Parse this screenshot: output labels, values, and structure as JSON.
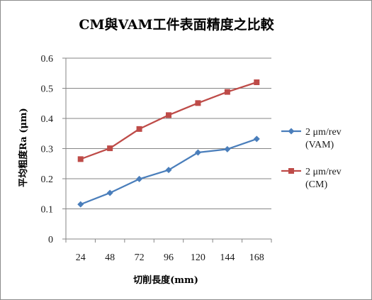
{
  "chart_data": {
    "type": "line",
    "title": "CM與VAM工件表面精度之比較",
    "xlabel": "切削長度(mm)",
    "ylabel": "平均粗度Ra (μm)",
    "categories": [
      "24",
      "48",
      "72",
      "96",
      "120",
      "144",
      "168"
    ],
    "ylim": [
      0,
      0.6
    ],
    "yticks": [
      "0",
      "0.1",
      "0.2",
      "0.3",
      "0.4",
      "0.5",
      "0.6"
    ],
    "grid": true,
    "legend_position": "right",
    "series": [
      {
        "name_line1": "2 μm/rev",
        "name_line2": "(VAM)",
        "values": [
          0.115,
          0.153,
          0.199,
          0.229,
          0.287,
          0.298,
          0.332
        ],
        "color": "#4a7ebb",
        "marker": "diamond"
      },
      {
        "name_line1": "2 μm/rev",
        "name_line2": "(CM)",
        "values": [
          0.265,
          0.301,
          0.365,
          0.411,
          0.451,
          0.488,
          0.52
        ],
        "color": "#be4b48",
        "marker": "square"
      }
    ]
  }
}
